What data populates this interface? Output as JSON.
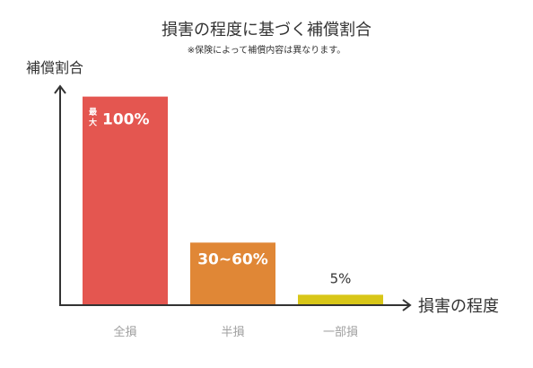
{
  "chart_data": {
    "type": "bar",
    "title": "損害の程度に基づく補償割合",
    "subtitle": "※保険によって補償内容は異なります。",
    "ylabel": "補償割合",
    "xlabel": "損害の程度",
    "categories": [
      "全損",
      "半損",
      "一部損"
    ],
    "values": [
      100,
      30,
      5
    ],
    "value_labels": [
      "100%",
      "30~60%",
      "5%"
    ],
    "value_label_prefix": [
      "最",
      "大"
    ],
    "colors": [
      "#e45650",
      "#e08736",
      "#d8c618"
    ],
    "ylim": [
      0,
      105
    ],
    "grid": false
  }
}
